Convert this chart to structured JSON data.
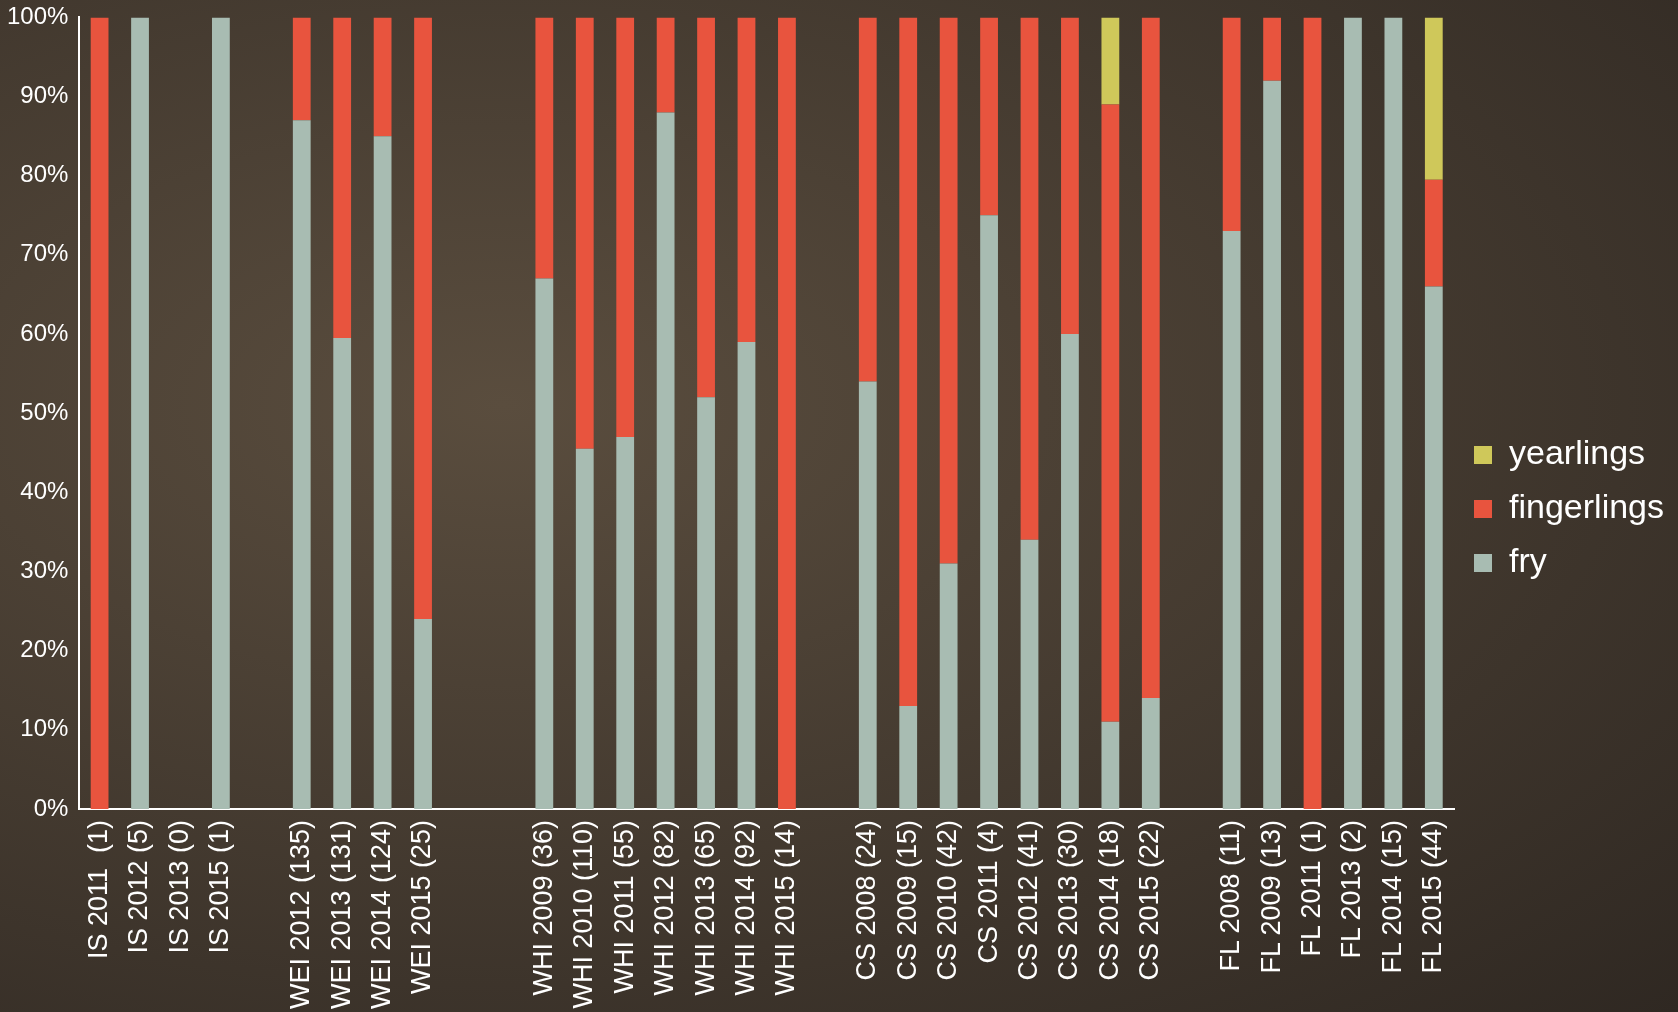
{
  "chart_data": {
    "type": "bar",
    "stacked": true,
    "legend": "right",
    "grid": false,
    "categories": [
      "IS 2011  (1)",
      "IS 2012 (5)",
      "IS 2013 (0)",
      "IS 2015 (1)",
      null,
      "WEI 2012 (135)",
      "WEI 2013 (131)",
      "WEI 2014 (124)",
      "WEI 2015 (25)",
      null,
      null,
      "WHI 2009 (36)",
      "WHI 2010 (110)",
      "WHI 2011 (55)",
      "WHI 2012 (82)",
      "WHI 2013 (65)",
      "WHI 2014 (92)",
      "WHI 2015 (14)",
      null,
      "CS 2008 (24)",
      "CS 2009 (15)",
      "CS 2010 (42)",
      "CS 2011 (4)",
      "CS 2012 (41)",
      "CS 2013 (30)",
      "CS 2014 (18)",
      "CS 2015 (22)",
      null,
      "FL 2008 (11)",
      "FL 2009 (13)",
      "FL 2011 (1)",
      "FL 2013 (2)",
      "FL 2014 (15)",
      "FL 2015 (44)"
    ],
    "series": [
      {
        "name": "fry",
        "color": "#a8bcb2",
        "values": [
          0,
          100,
          null,
          100,
          null,
          87,
          59.5,
          85,
          24,
          null,
          null,
          67,
          45.5,
          47,
          88,
          52,
          59,
          0,
          null,
          54,
          13,
          31,
          75,
          34,
          60,
          11,
          14,
          null,
          73,
          92,
          0,
          100,
          100,
          66
        ]
      },
      {
        "name": "fingerlings",
        "color": "#e8543e",
        "values": [
          100,
          0,
          null,
          0,
          null,
          13,
          40.5,
          15,
          76,
          null,
          null,
          33,
          54.5,
          53,
          12,
          48,
          41,
          100,
          null,
          46,
          87,
          69,
          25,
          66,
          40,
          78,
          86,
          null,
          27,
          8,
          100,
          0,
          0,
          13.5
        ]
      },
      {
        "name": "yearlings",
        "color": "#cfc85a",
        "values": [
          0,
          0,
          null,
          0,
          null,
          0,
          0,
          0,
          0,
          null,
          null,
          0,
          0,
          0,
          0,
          0,
          0,
          0,
          null,
          0,
          0,
          0,
          0,
          0,
          0,
          11,
          0,
          null,
          0,
          0,
          0,
          0,
          0,
          20.5
        ]
      }
    ],
    "ylim": [
      0,
      100
    ],
    "yticks": [
      {
        "value": 0,
        "label": "0%"
      },
      {
        "value": 10,
        "label": "10%"
      },
      {
        "value": 20,
        "label": "20%"
      },
      {
        "value": 30,
        "label": "30%"
      },
      {
        "value": 40,
        "label": "40%"
      },
      {
        "value": 50,
        "label": "50%"
      },
      {
        "value": 60,
        "label": "60%"
      },
      {
        "value": 70,
        "label": "70%"
      },
      {
        "value": 80,
        "label": "80%"
      },
      {
        "value": 90,
        "label": "90%"
      },
      {
        "value": 100,
        "label": "100%"
      }
    ]
  }
}
